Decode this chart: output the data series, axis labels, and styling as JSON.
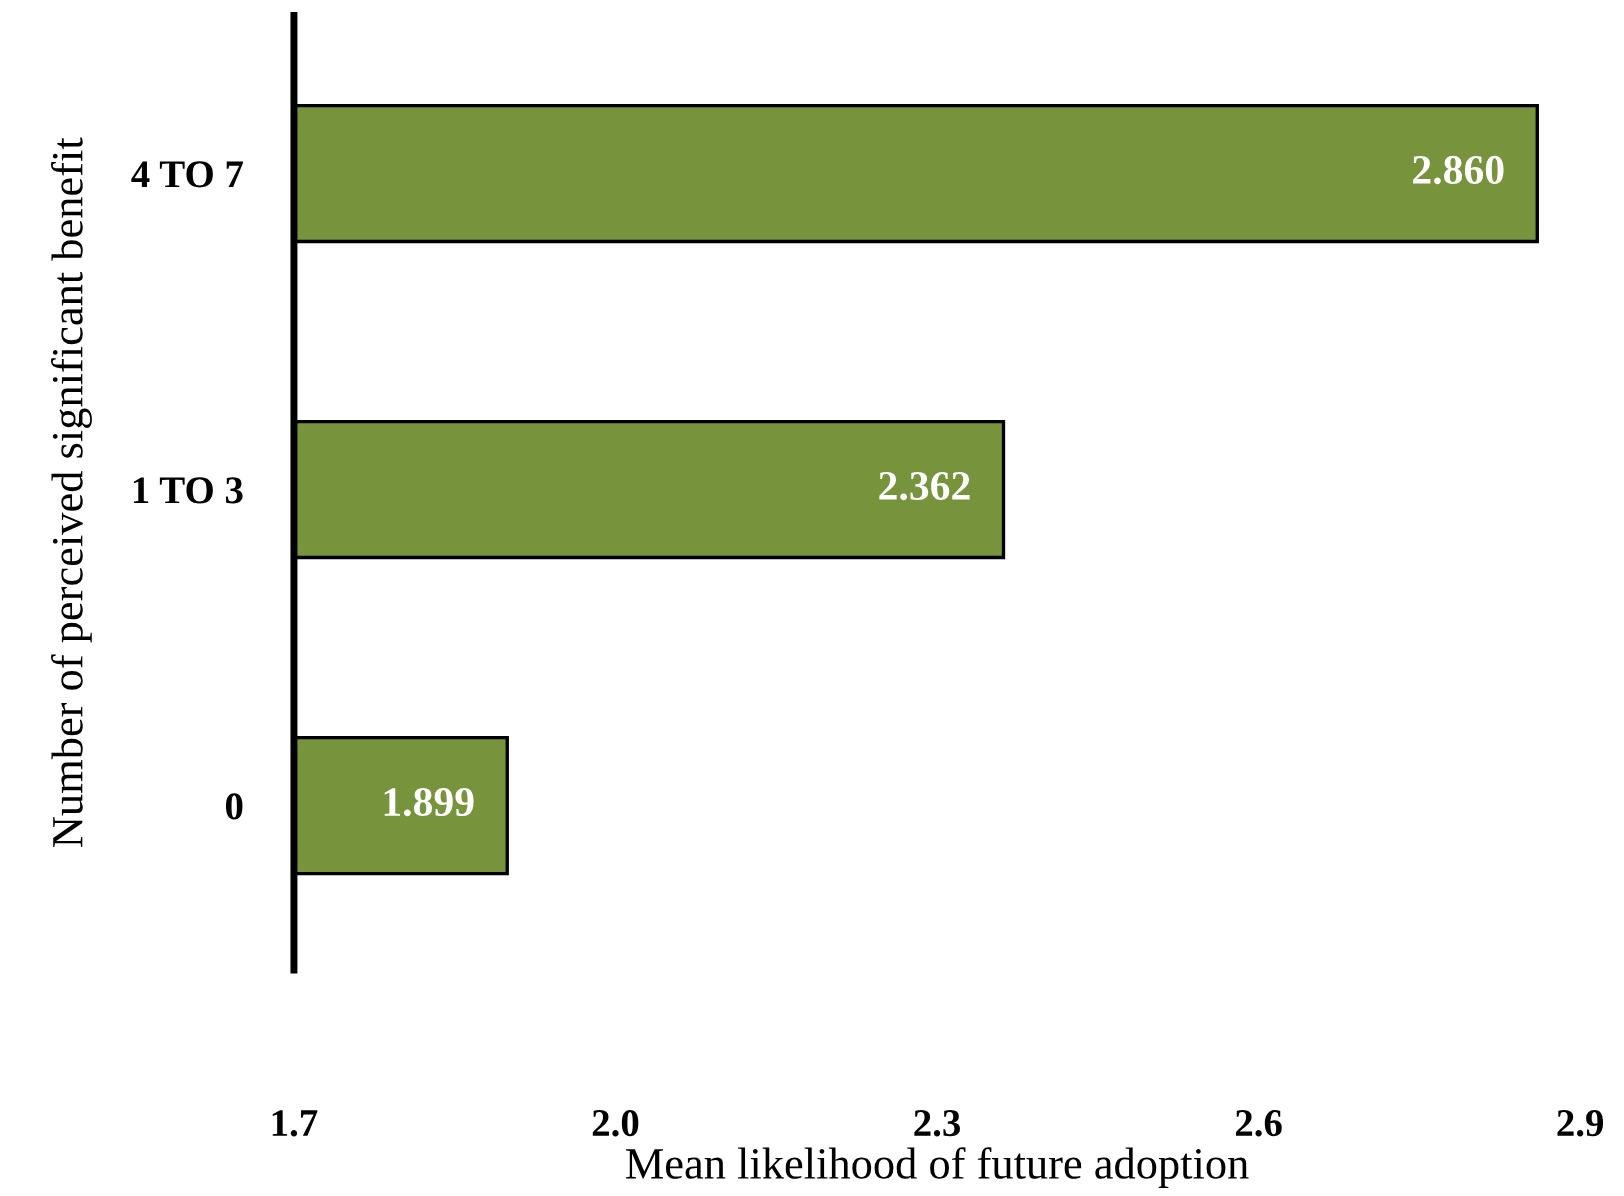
{
  "chart_data": {
    "type": "bar",
    "orientation": "horizontal",
    "categories": [
      "4 TO 7",
      "1 TO 3",
      "0"
    ],
    "values": [
      2.86,
      2.362,
      1.899
    ],
    "value_labels": [
      "2.860",
      "2.362",
      "1.899"
    ],
    "color": "#77933c",
    "xlim": [
      1.7,
      2.9
    ],
    "xticks": [
      1.7,
      {
        "value": 2.0,
        "label": "2.0"
      },
      2.3,
      2.6,
      2.9
    ],
    "xlabel": "Mean likelihood of future adoption",
    "ylabel": "Number of perceived significant benefit",
    "grid": false
  }
}
